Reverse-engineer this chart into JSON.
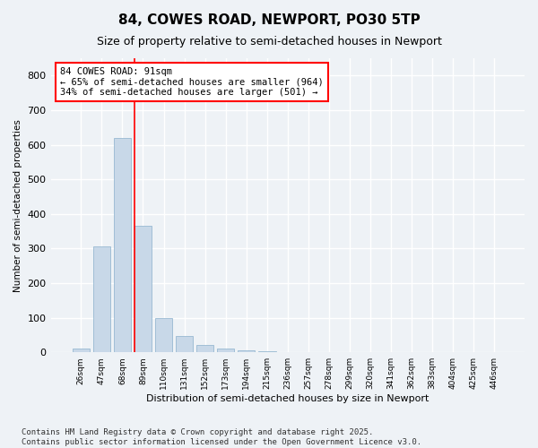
{
  "title": "84, COWES ROAD, NEWPORT, PO30 5TP",
  "subtitle": "Size of property relative to semi-detached houses in Newport",
  "xlabel": "Distribution of semi-detached houses by size in Newport",
  "ylabel": "Number of semi-detached properties",
  "bar_color": "#c8d8e8",
  "bar_edge_color": "#8ab0cc",
  "categories": [
    "26sqm",
    "47sqm",
    "68sqm",
    "89sqm",
    "110sqm",
    "131sqm",
    "152sqm",
    "173sqm",
    "194sqm",
    "215sqm",
    "236sqm",
    "257sqm",
    "278sqm",
    "299sqm",
    "320sqm",
    "341sqm",
    "362sqm",
    "383sqm",
    "404sqm",
    "425sqm",
    "446sqm"
  ],
  "values": [
    10,
    305,
    620,
    365,
    100,
    47,
    20,
    10,
    5,
    2,
    1,
    0,
    0,
    0,
    0,
    0,
    0,
    0,
    0,
    0,
    0
  ],
  "ylim": [
    0,
    850
  ],
  "yticks": [
    0,
    100,
    200,
    300,
    400,
    500,
    600,
    700,
    800
  ],
  "property_line_bin": 3,
  "annotation_text": "84 COWES ROAD: 91sqm\n← 65% of semi-detached houses are smaller (964)\n34% of semi-detached houses are larger (501) →",
  "footer": "Contains HM Land Registry data © Crown copyright and database right 2025.\nContains public sector information licensed under the Open Government Licence v3.0.",
  "background_color": "#eef2f6",
  "plot_background": "#eef2f6",
  "grid_color": "#ffffff",
  "title_fontsize": 11,
  "subtitle_fontsize": 9,
  "annotation_fontsize": 7.5,
  "footer_fontsize": 6.5
}
